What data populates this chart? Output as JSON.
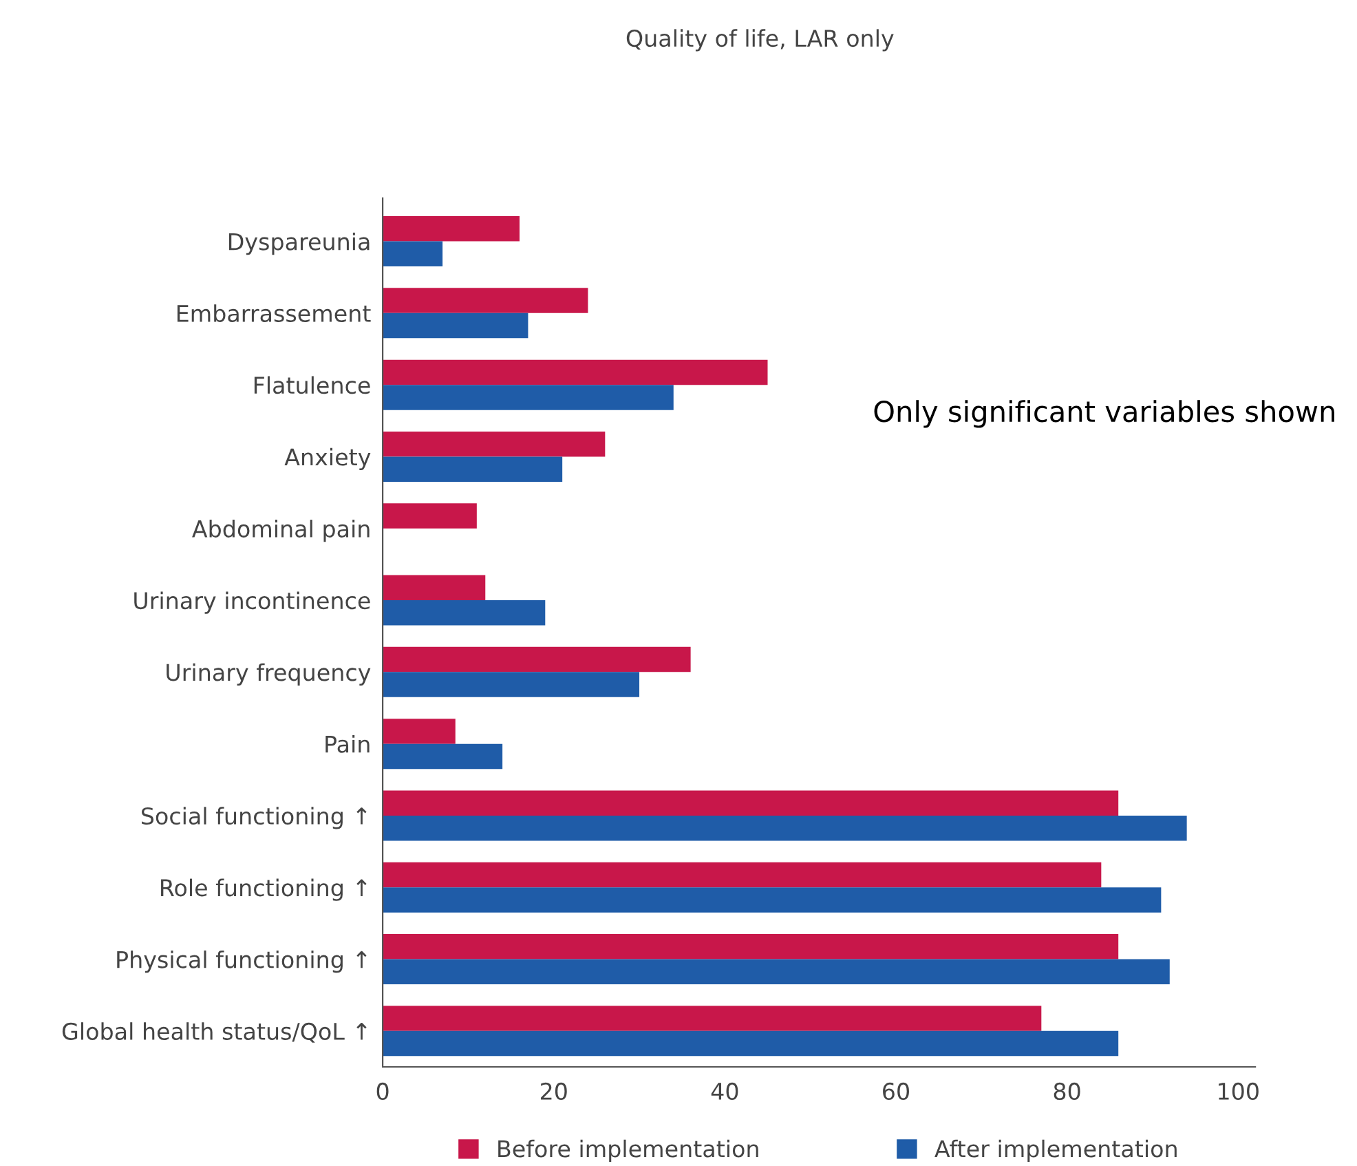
{
  "chart_data": {
    "type": "bar",
    "orientation": "horizontal",
    "title": "Quality of life, LAR only",
    "categories": [
      "Dyspareunia",
      "Embarrassement",
      "Flatulence",
      "Anxiety",
      "Abdominal pain",
      "Urinary incontinence",
      "Urinary frequency",
      "Pain",
      "Social functioning ↑",
      "Role functioning ↑",
      "Physical functioning ↑",
      "Global health status/QoL ↑"
    ],
    "series": [
      {
        "name": "Before implementation",
        "color": "#c8174a",
        "values": [
          16,
          24,
          45,
          26,
          11,
          12,
          36,
          8.5,
          86,
          84,
          86,
          77
        ]
      },
      {
        "name": "After implementation",
        "color": "#1f5ca8",
        "values": [
          7,
          17,
          34,
          21,
          null,
          19,
          30,
          14,
          94,
          91,
          92,
          86
        ]
      }
    ],
    "xlim": [
      0,
      102
    ],
    "xticks": [
      0,
      20,
      40,
      60,
      80,
      100
    ],
    "grid": false,
    "legend": "bottom",
    "annotations": [
      "Only significant variables shown"
    ]
  }
}
